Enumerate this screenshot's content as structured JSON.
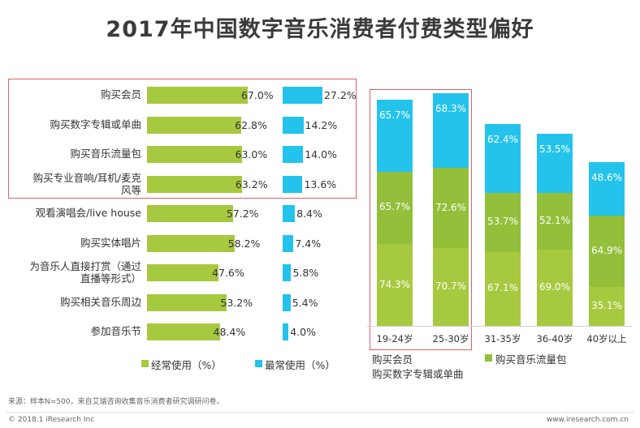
{
  "title": "2017年中国数字音乐消费者付费类型偏好",
  "chart_data": [
    {
      "type": "bar",
      "orientation": "horizontal",
      "categories": [
        "购买会员",
        "购买数字专辑或单曲",
        "购买音乐流量包",
        "购买专业音响/耳机/麦克风等",
        "观看演唱会/live house",
        "购买实体唱片",
        "为音乐人直接打赏（通过直播等形式）",
        "购买相关音乐周边",
        "参加音乐节"
      ],
      "category_labels": [
        [
          "购买会员"
        ],
        [
          "购买数字专辑或单曲"
        ],
        [
          "购买音乐流量包"
        ],
        [
          "购买专业音响/耳机/麦克",
          "风等"
        ],
        [
          "观看演唱会/live house"
        ],
        [
          "购买实体唱片"
        ],
        [
          "为音乐人直接打赏（通过",
          "直播等形式）"
        ],
        [
          "购买相关音乐周边"
        ],
        [
          "参加音乐节"
        ]
      ],
      "series": [
        {
          "name": "经常使用（%）",
          "values": [
            67.0,
            62.8,
            63.0,
            63.2,
            57.2,
            58.2,
            47.6,
            53.2,
            48.4
          ],
          "labels": [
            "67.0%",
            "62.8%",
            "63.0%",
            "63.2%",
            "57.2%",
            "58.2%",
            "47.6%",
            "53.2%",
            "48.4%"
          ],
          "color": "#a7c93f"
        },
        {
          "name": "最常使用（%）",
          "values": [
            27.2,
            14.2,
            14.0,
            13.6,
            8.4,
            7.4,
            5.8,
            5.4,
            4.0
          ],
          "labels": [
            "27.2%",
            "14.2%",
            "14.0%",
            "13.6%",
            "8.4%",
            "7.4%",
            "5.8%",
            "5.4%",
            "4.0%"
          ],
          "color": "#23c3ec"
        }
      ],
      "legend": {
        "items": [
          "经常使用（%）",
          "最常使用（%）"
        ],
        "position": "bottom"
      }
    },
    {
      "type": "bar",
      "stacked": true,
      "categories": [
        "19-24岁",
        "25-30岁",
        "31-35岁",
        "36-40岁",
        "40岁以上"
      ],
      "series": [
        {
          "name": "购买音乐流量包",
          "values": [
            74.3,
            70.7,
            67.1,
            69.0,
            35.1
          ],
          "labels": [
            "74.3%",
            "70.7%",
            "67.1%",
            "69.0%",
            "35.1%"
          ],
          "color": "#a7c93f"
        },
        {
          "name": "购买数字专辑或单曲",
          "values": [
            65.7,
            72.6,
            53.7,
            52.1,
            64.9
          ],
          "labels": [
            "65.7%",
            "72.6%",
            "53.7%",
            "52.1%",
            "64.9%"
          ],
          "color": "#93bf3a"
        },
        {
          "name": "购买会员",
          "values": [
            65.7,
            68.3,
            62.4,
            53.5,
            48.6
          ],
          "labels": [
            "65.7%",
            "68.3%",
            "62.4%",
            "53.5%",
            "48.6%"
          ],
          "color": "#23c3ec"
        }
      ],
      "legend": {
        "items": [
          "购买会员",
          "购买数字专辑或单曲",
          "购买音乐流量包"
        ],
        "position": "bottom"
      }
    }
  ],
  "footer": {
    "source": "来源：样本N=500，来自艾瑞咨询收集音乐消费者研究调研问卷。",
    "copyright": "© 2018.1 iResearch Inc",
    "website": "www.iresearch.com.cn"
  }
}
